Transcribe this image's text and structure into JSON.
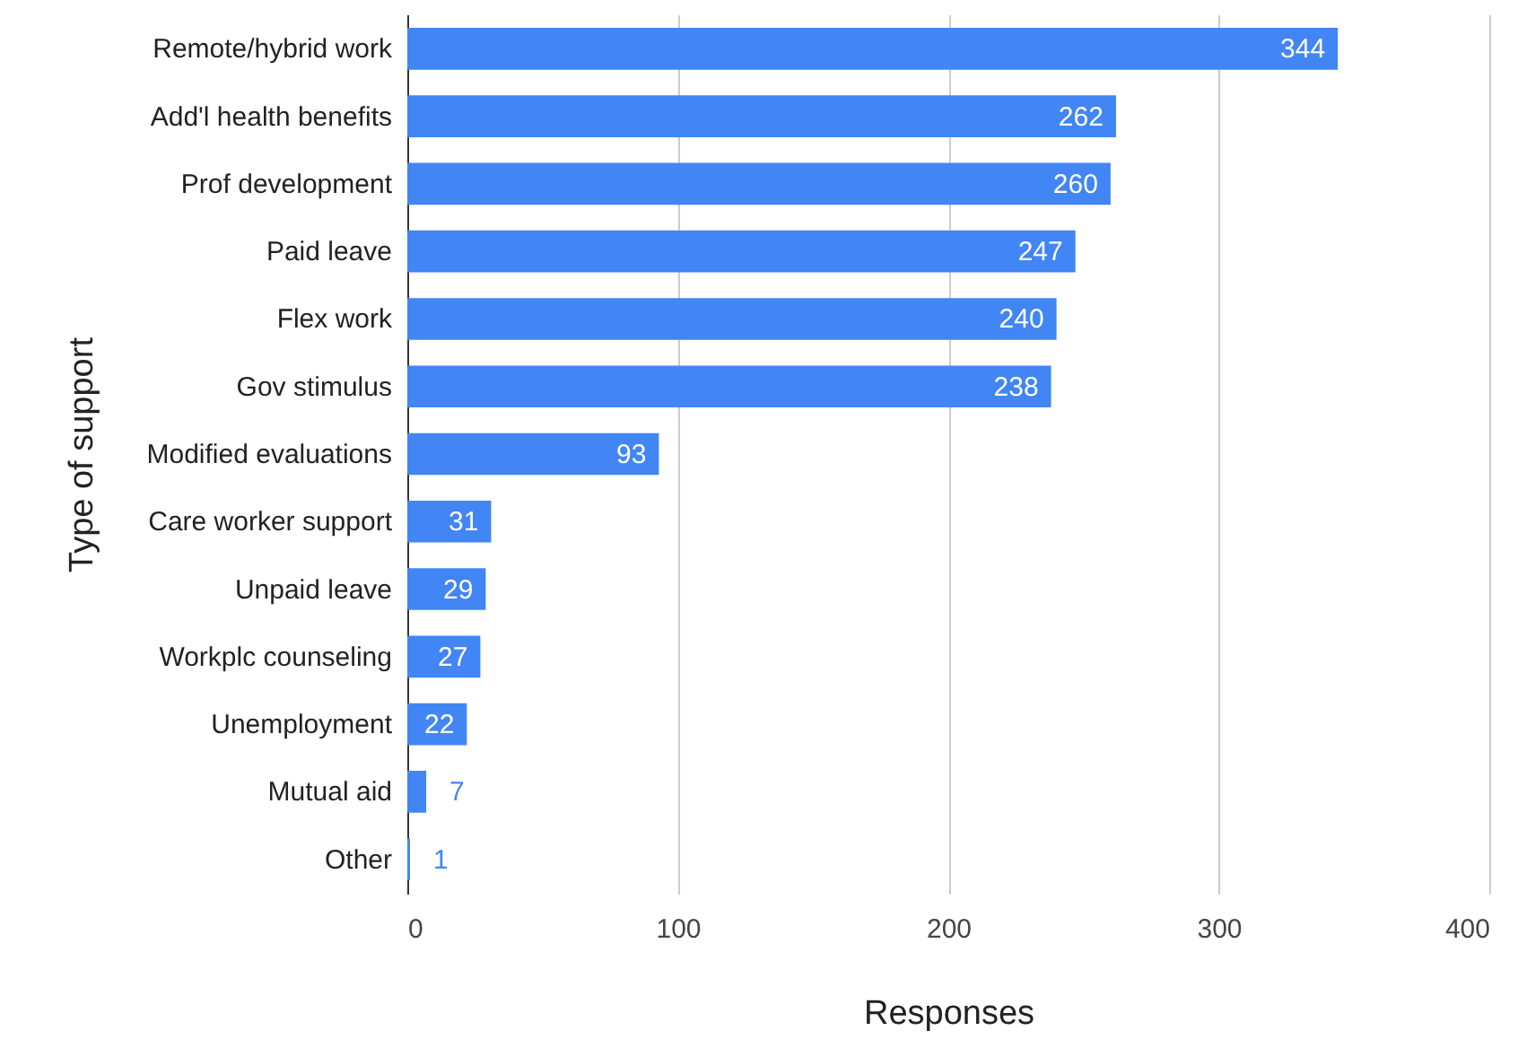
{
  "chart_data": {
    "type": "bar",
    "orientation": "horizontal",
    "xlabel": "Responses",
    "ylabel": "Type of support",
    "categories": [
      "Remote/hybrid work",
      "Add'l health benefits",
      "Prof development",
      "Paid leave",
      "Flex work",
      "Gov stimulus",
      "Modified evaluations",
      "Care worker support",
      "Unpaid leave",
      "Workplc counseling",
      "Unemployment",
      "Mutual aid",
      "Other"
    ],
    "values": [
      344,
      262,
      260,
      247,
      240,
      238,
      93,
      31,
      29,
      27,
      22,
      7,
      1
    ],
    "color": "#4285f4",
    "xlim": [
      0,
      400
    ],
    "xticks": [
      0,
      100,
      200,
      300,
      400
    ],
    "grid": "x",
    "data_labels": true
  }
}
